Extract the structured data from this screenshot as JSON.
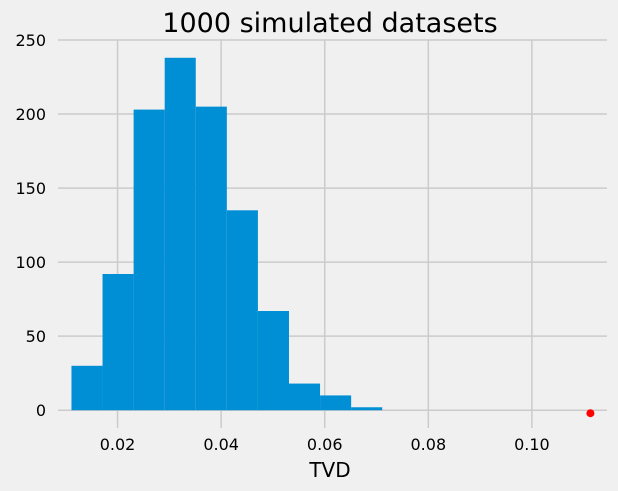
{
  "chart_data": {
    "type": "histogram",
    "title": "1000 simulated datasets",
    "xlabel": "TVD",
    "ylabel": "",
    "xlim": [
      0.0085,
      0.1145
    ],
    "ylim": [
      -12,
      250
    ],
    "xticks": [
      0.02,
      0.04,
      0.06,
      0.08,
      0.1
    ],
    "xtick_labels": [
      "0.02",
      "0.04",
      "0.06",
      "0.08",
      "0.10"
    ],
    "yticks": [
      0,
      50,
      100,
      150,
      200,
      250
    ],
    "ytick_labels": [
      "0",
      "50",
      "100",
      "150",
      "200",
      "250"
    ],
    "grid": true,
    "bins": [
      {
        "start": 0.0111,
        "end": 0.0171,
        "count": 30
      },
      {
        "start": 0.0171,
        "end": 0.0231,
        "count": 92
      },
      {
        "start": 0.0231,
        "end": 0.0291,
        "count": 203
      },
      {
        "start": 0.0291,
        "end": 0.0351,
        "count": 238
      },
      {
        "start": 0.0351,
        "end": 0.0411,
        "count": 205
      },
      {
        "start": 0.0411,
        "end": 0.0471,
        "count": 135
      },
      {
        "start": 0.0471,
        "end": 0.0531,
        "count": 67
      },
      {
        "start": 0.0531,
        "end": 0.0591,
        "count": 18
      },
      {
        "start": 0.0591,
        "end": 0.0651,
        "count": 10
      },
      {
        "start": 0.0651,
        "end": 0.0711,
        "count": 2
      }
    ],
    "observed_point": {
      "x": 0.1113,
      "y": -2
    },
    "colors": {
      "bars": "#008fd5",
      "point": "#ff0000",
      "background": "#f0f0f0",
      "grid": "#cbcbcb"
    }
  }
}
